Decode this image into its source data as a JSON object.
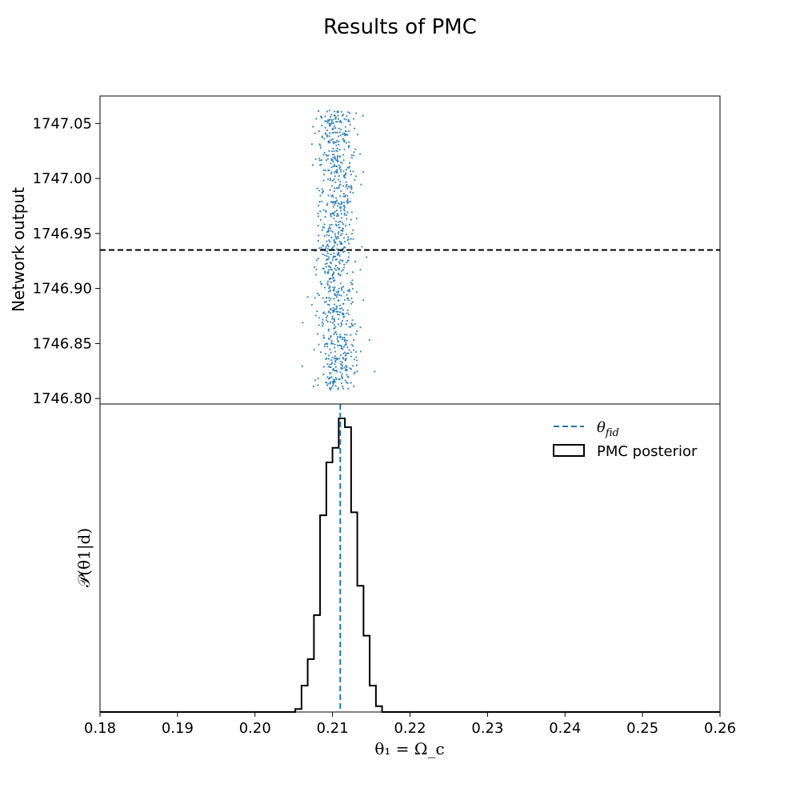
{
  "figure": {
    "title": "Results of PMC"
  },
  "chart_data": [
    {
      "type": "scatter",
      "panel": "top",
      "xlabel": "",
      "ylabel": "Network output",
      "xlim": [
        0.18,
        0.26
      ],
      "ylim": [
        1746.795,
        1747.075
      ],
      "yticks": [
        "1746.80",
        "1746.85",
        "1746.90",
        "1746.95",
        "1747.00",
        "1747.05"
      ],
      "ytick_values": [
        1746.8,
        1746.85,
        1746.9,
        1746.95,
        1747.0,
        1747.05
      ],
      "point_color": "#1f77b4",
      "points": {
        "count": 900,
        "x_center": 0.2105,
        "x_spread_sd": 0.0013,
        "x_range": [
          0.2055,
          0.2165
        ],
        "y_range": [
          1746.808,
          1747.062
        ]
      },
      "hline": {
        "y": 1746.935,
        "style": "dashed",
        "color": "#000000"
      },
      "grid": false
    },
    {
      "type": "histogram",
      "panel": "bottom",
      "xlabel": "θ₁ = Ω_c",
      "ylabel": "𝒫(θ1|d)",
      "xlim": [
        0.18,
        0.26
      ],
      "xticks": [
        "0.18",
        "0.19",
        "0.20",
        "0.21",
        "0.22",
        "0.23",
        "0.24",
        "0.25",
        "0.26"
      ],
      "xtick_values": [
        0.18,
        0.19,
        0.2,
        0.21,
        0.22,
        0.23,
        0.24,
        0.25,
        0.26
      ],
      "bin_edges": [
        0.2052,
        0.206,
        0.2068,
        0.2076,
        0.2084,
        0.2092,
        0.21,
        0.2108,
        0.2116,
        0.2124,
        0.2132,
        0.214,
        0.2148,
        0.2156,
        0.2164
      ],
      "counts": [
        1,
        9,
        18,
        33,
        67,
        85,
        90,
        100,
        97,
        68,
        43,
        26,
        9,
        2
      ],
      "vline": {
        "x": 0.211,
        "style": "dashed",
        "color": "#1f77b4"
      },
      "legend": {
        "position": "top-right",
        "entries": [
          {
            "label_main": "θ",
            "label_sub": "fid",
            "kind": "dashed-line",
            "color": "#1f77b4"
          },
          {
            "label": "PMC posterior",
            "kind": "step-box",
            "color": "#000000"
          }
        ]
      },
      "grid": false
    }
  ]
}
